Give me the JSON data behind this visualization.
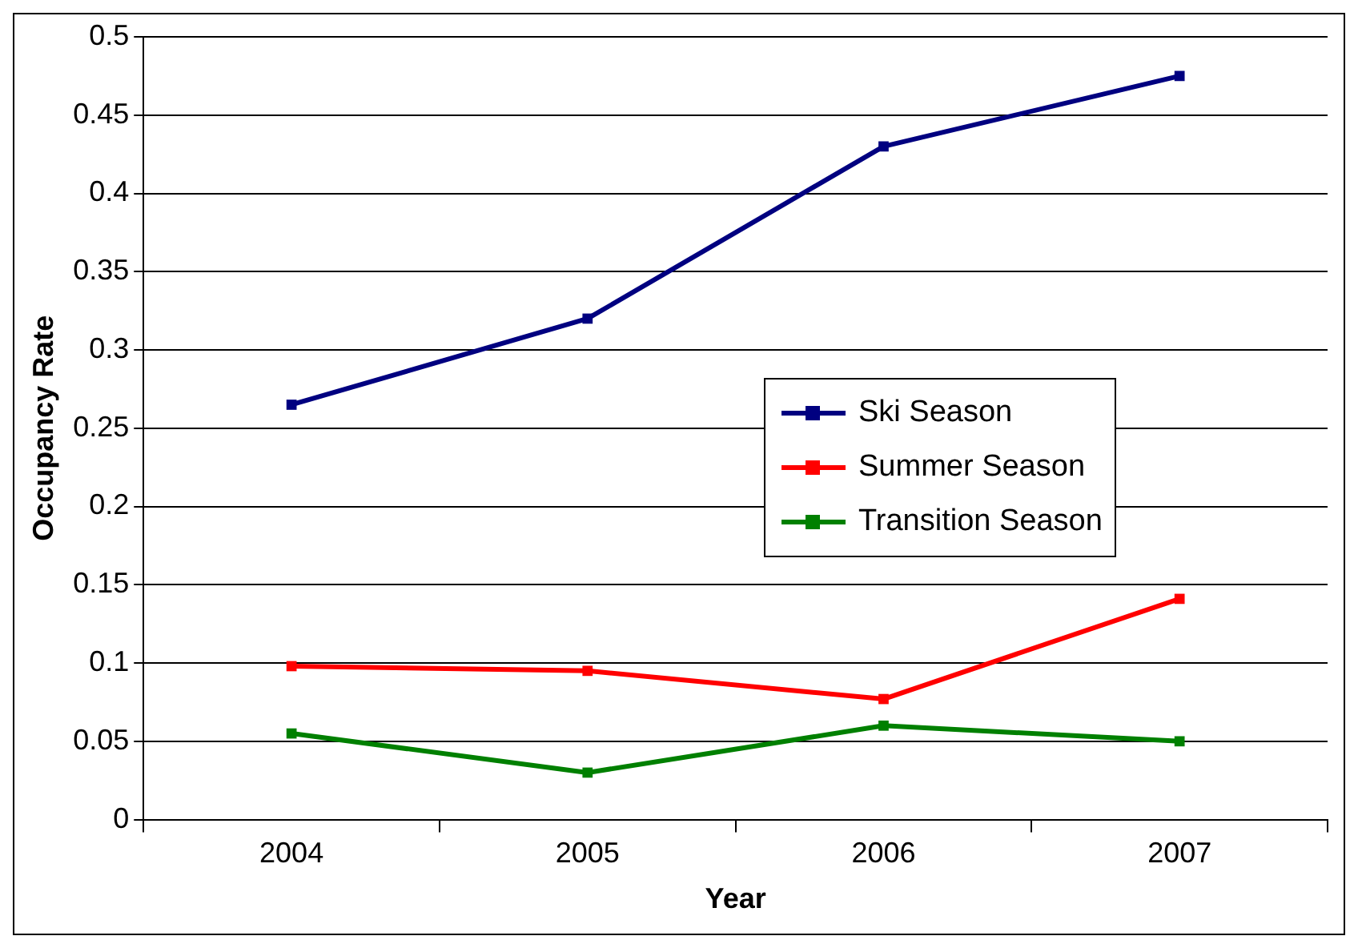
{
  "chart_data": {
    "type": "line",
    "xlabel": "Year",
    "ylabel": "Occupancy Rate",
    "categories": [
      "2004",
      "2005",
      "2006",
      "2007"
    ],
    "series": [
      {
        "name": "Ski Season",
        "color": "#000080",
        "values": [
          0.265,
          0.32,
          0.43,
          0.475
        ]
      },
      {
        "name": "Summer Season",
        "color": "#ff0000",
        "values": [
          0.098,
          0.095,
          0.077,
          0.141
        ]
      },
      {
        "name": "Transition Season",
        "color": "#008000",
        "values": [
          0.055,
          0.03,
          0.06,
          0.05
        ]
      }
    ],
    "ylim": [
      0,
      0.5
    ],
    "yticks": [
      0,
      0.05,
      0.1,
      0.15,
      0.2,
      0.25,
      0.3,
      0.35,
      0.4,
      0.45,
      0.5
    ],
    "grid": "y",
    "legend": "right",
    "marker": "square",
    "line_style": "solid"
  }
}
